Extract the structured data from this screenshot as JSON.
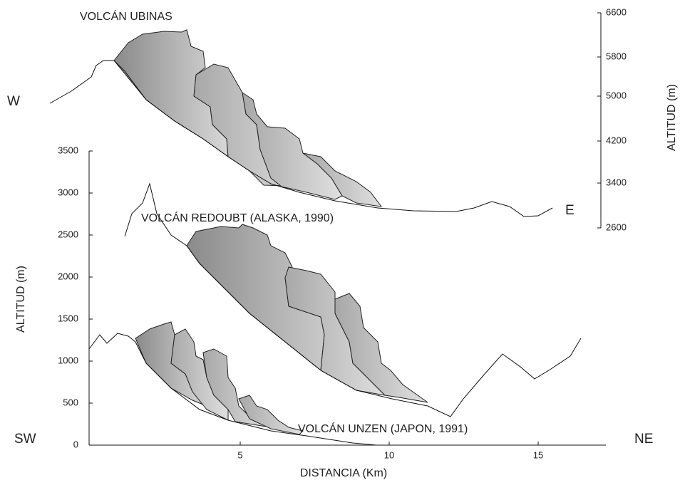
{
  "labels": {
    "ubinas": "VOLCÁN UBINAS",
    "redoubt": "VOLCÁN REDOUBT (ALASKA, 1990)",
    "unzen": "VOLCÁN UNZEN (JAPON, 1991)",
    "w": "W",
    "e": "E",
    "sw": "SW",
    "ne": "NE"
  },
  "left_axis": {
    "title": "ALTITUD (m)",
    "ticks": [
      "3500",
      "3000",
      "2500",
      "2000",
      "1500",
      "1000",
      "500",
      "0"
    ]
  },
  "right_axis": {
    "title": "ALTITUD (m)",
    "ticks": [
      "6600",
      "5800",
      "5000",
      "4200",
      "3400",
      "2600"
    ]
  },
  "x_axis": {
    "title": "DISTANCIA (Km)",
    "ticks": [
      "5",
      "10",
      "15"
    ]
  }
}
